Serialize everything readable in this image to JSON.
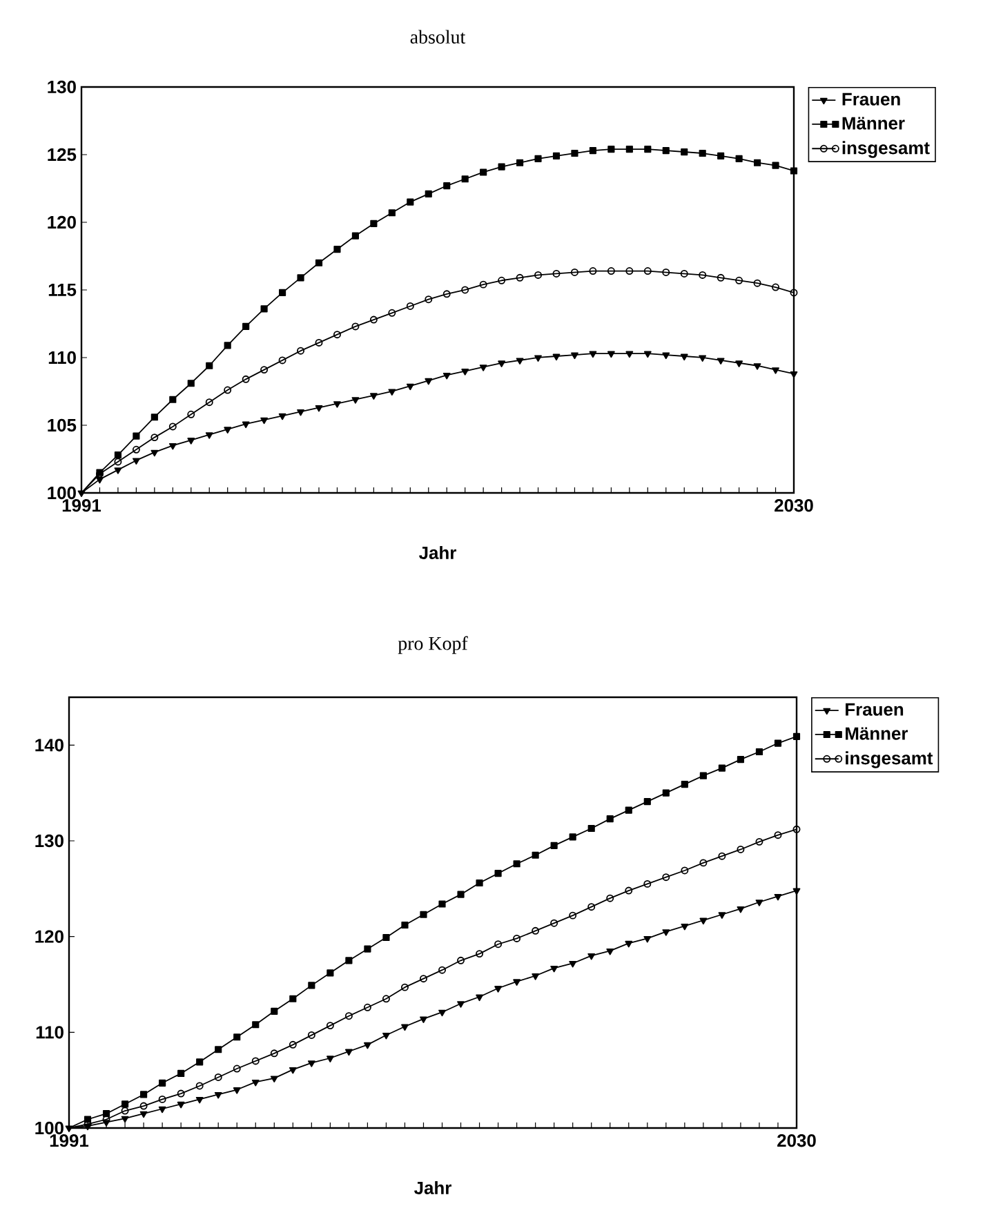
{
  "chart_data": [
    {
      "type": "line",
      "title": "absolut",
      "xlabel": "Jahr",
      "legend": "right",
      "grid": false,
      "line_style": "solid",
      "x": [
        1991,
        1992,
        1993,
        1994,
        1995,
        1996,
        1997,
        1998,
        1999,
        2000,
        2001,
        2002,
        2003,
        2004,
        2005,
        2006,
        2007,
        2008,
        2009,
        2010,
        2011,
        2012,
        2013,
        2014,
        2015,
        2016,
        2017,
        2018,
        2019,
        2020,
        2021,
        2022,
        2023,
        2024,
        2025,
        2026,
        2027,
        2028,
        2029,
        2030
      ],
      "xlim": [
        1991,
        2030
      ],
      "xticks": [
        1991,
        {
          "value": 1992,
          "label": null
        },
        {
          "value": 1993,
          "label": null
        },
        {
          "value": 1994,
          "label": null
        },
        {
          "value": 1995,
          "label": null
        },
        {
          "value": 1996,
          "label": null
        },
        {
          "value": 1997,
          "label": null
        },
        {
          "value": 1998,
          "label": null
        },
        {
          "value": 1999,
          "label": null
        },
        {
          "value": 2000,
          "label": null
        },
        {
          "value": 2001,
          "label": null
        },
        {
          "value": 2002,
          "label": null
        },
        {
          "value": 2003,
          "label": null
        },
        {
          "value": 2004,
          "label": null
        },
        {
          "value": 2005,
          "label": null
        },
        {
          "value": 2006,
          "label": null
        },
        {
          "value": 2007,
          "label": null
        },
        {
          "value": 2008,
          "label": null
        },
        {
          "value": 2009,
          "label": null
        },
        {
          "value": 2010,
          "label": null
        },
        {
          "value": 2011,
          "label": null
        },
        {
          "value": 2012,
          "label": null
        },
        {
          "value": 2013,
          "label": null
        },
        {
          "value": 2014,
          "label": null
        },
        {
          "value": 2015,
          "label": null
        },
        {
          "value": 2016,
          "label": null
        },
        {
          "value": 2017,
          "label": null
        },
        {
          "value": 2018,
          "label": null
        },
        {
          "value": 2019,
          "label": null
        },
        {
          "value": 2020,
          "label": null
        },
        {
          "value": 2021,
          "label": null
        },
        {
          "value": 2022,
          "label": null
        },
        {
          "value": 2023,
          "label": null
        },
        {
          "value": 2024,
          "label": null
        },
        {
          "value": 2025,
          "label": null
        },
        {
          "value": 2026,
          "label": null
        },
        {
          "value": 2027,
          "label": null
        },
        {
          "value": 2028,
          "label": null
        },
        {
          "value": 2029,
          "label": null
        },
        2030
      ],
      "ylim": [
        100,
        130
      ],
      "yticks": [
        100,
        105,
        110,
        115,
        120,
        125,
        130
      ],
      "series": [
        {
          "name": "Frauen",
          "color": "#000000",
          "marker": "triangle",
          "values": [
            100,
            101.0,
            101.7,
            102.4,
            103.0,
            103.5,
            103.9,
            104.3,
            104.7,
            105.1,
            105.4,
            105.7,
            106.0,
            106.3,
            106.6,
            106.9,
            107.2,
            107.5,
            107.9,
            108.3,
            108.7,
            109.0,
            109.3,
            109.6,
            109.8,
            110.0,
            110.1,
            110.2,
            110.3,
            110.3,
            110.3,
            110.3,
            110.2,
            110.1,
            110.0,
            109.8,
            109.6,
            109.4,
            109.1,
            108.8
          ]
        },
        {
          "name": "Männer",
          "color": "#000000",
          "marker": "square",
          "values": [
            100,
            101.5,
            102.8,
            104.2,
            105.6,
            106.9,
            108.1,
            109.4,
            110.9,
            112.3,
            113.6,
            114.8,
            115.9,
            117.0,
            118.0,
            119.0,
            119.9,
            120.7,
            121.5,
            122.1,
            122.7,
            123.2,
            123.7,
            124.1,
            124.4,
            124.7,
            124.9,
            125.1,
            125.3,
            125.4,
            125.4,
            125.4,
            125.3,
            125.2,
            125.1,
            124.9,
            124.7,
            124.4,
            124.2,
            123.8
          ]
        },
        {
          "name": "insgesamt",
          "color": "#000000",
          "marker": "circle",
          "values": [
            100,
            101.4,
            102.3,
            103.2,
            104.1,
            104.9,
            105.8,
            106.7,
            107.6,
            108.4,
            109.1,
            109.8,
            110.5,
            111.1,
            111.7,
            112.3,
            112.8,
            113.3,
            113.8,
            114.3,
            114.7,
            115.0,
            115.4,
            115.7,
            115.9,
            116.1,
            116.2,
            116.3,
            116.4,
            116.4,
            116.4,
            116.4,
            116.3,
            116.2,
            116.1,
            115.9,
            115.7,
            115.5,
            115.2,
            114.8
          ]
        }
      ]
    },
    {
      "type": "line",
      "title": "pro Kopf",
      "xlabel": "Jahr",
      "legend": "right",
      "grid": false,
      "line_style": "solid",
      "x": [
        1991,
        1992,
        1993,
        1994,
        1995,
        1996,
        1997,
        1998,
        1999,
        2000,
        2001,
        2002,
        2003,
        2004,
        2005,
        2006,
        2007,
        2008,
        2009,
        2010,
        2011,
        2012,
        2013,
        2014,
        2015,
        2016,
        2017,
        2018,
        2019,
        2020,
        2021,
        2022,
        2023,
        2024,
        2025,
        2026,
        2027,
        2028,
        2029,
        2030
      ],
      "xlim": [
        1991,
        2030
      ],
      "xticks": [
        1991,
        {
          "value": 1992,
          "label": null
        },
        {
          "value": 1993,
          "label": null
        },
        {
          "value": 1994,
          "label": null
        },
        {
          "value": 1995,
          "label": null
        },
        {
          "value": 1996,
          "label": null
        },
        {
          "value": 1997,
          "label": null
        },
        {
          "value": 1998,
          "label": null
        },
        {
          "value": 1999,
          "label": null
        },
        {
          "value": 2000,
          "label": null
        },
        {
          "value": 2001,
          "label": null
        },
        {
          "value": 2002,
          "label": null
        },
        {
          "value": 2003,
          "label": null
        },
        {
          "value": 2004,
          "label": null
        },
        {
          "value": 2005,
          "label": null
        },
        {
          "value": 2006,
          "label": null
        },
        {
          "value": 2007,
          "label": null
        },
        {
          "value": 2008,
          "label": null
        },
        {
          "value": 2009,
          "label": null
        },
        {
          "value": 2010,
          "label": null
        },
        {
          "value": 2011,
          "label": null
        },
        {
          "value": 2012,
          "label": null
        },
        {
          "value": 2013,
          "label": null
        },
        {
          "value": 2014,
          "label": null
        },
        {
          "value": 2015,
          "label": null
        },
        {
          "value": 2016,
          "label": null
        },
        {
          "value": 2017,
          "label": null
        },
        {
          "value": 2018,
          "label": null
        },
        {
          "value": 2019,
          "label": null
        },
        {
          "value": 2020,
          "label": null
        },
        {
          "value": 2021,
          "label": null
        },
        {
          "value": 2022,
          "label": null
        },
        {
          "value": 2023,
          "label": null
        },
        {
          "value": 2024,
          "label": null
        },
        {
          "value": 2025,
          "label": null
        },
        {
          "value": 2026,
          "label": null
        },
        {
          "value": 2027,
          "label": null
        },
        {
          "value": 2028,
          "label": null
        },
        {
          "value": 2029,
          "label": null
        },
        2030
      ],
      "ylim": [
        100,
        145
      ],
      "yticks": [
        100,
        110,
        120,
        130,
        140
      ],
      "series": [
        {
          "name": "Frauen",
          "color": "#000000",
          "marker": "triangle",
          "values": [
            100,
            100.2,
            100.6,
            101.0,
            101.5,
            102.0,
            102.5,
            103.0,
            103.5,
            104.0,
            104.8,
            105.2,
            106.1,
            106.8,
            107.3,
            108.0,
            108.7,
            109.7,
            110.6,
            111.4,
            112.1,
            113.0,
            113.7,
            114.6,
            115.3,
            115.9,
            116.7,
            117.2,
            118.0,
            118.5,
            119.3,
            119.8,
            120.5,
            121.1,
            121.7,
            122.3,
            122.9,
            123.6,
            124.2,
            124.8
          ]
        },
        {
          "name": "Männer",
          "color": "#000000",
          "marker": "square",
          "values": [
            100,
            100.9,
            101.5,
            102.5,
            103.5,
            104.7,
            105.7,
            106.9,
            108.2,
            109.5,
            110.8,
            112.2,
            113.5,
            114.9,
            116.2,
            117.5,
            118.7,
            119.9,
            121.2,
            122.3,
            123.4,
            124.4,
            125.6,
            126.6,
            127.6,
            128.5,
            129.5,
            130.4,
            131.3,
            132.3,
            133.2,
            134.1,
            135.0,
            135.9,
            136.8,
            137.6,
            138.5,
            139.3,
            140.2,
            140.9
          ]
        },
        {
          "name": "insgesamt",
          "color": "#000000",
          "marker": "circle",
          "values": [
            100,
            100.4,
            100.9,
            101.8,
            102.3,
            103.0,
            103.6,
            104.4,
            105.3,
            106.2,
            107.0,
            107.8,
            108.7,
            109.7,
            110.7,
            111.7,
            112.6,
            113.5,
            114.7,
            115.6,
            116.5,
            117.5,
            118.2,
            119.2,
            119.8,
            120.6,
            121.4,
            122.2,
            123.1,
            124.0,
            124.8,
            125.5,
            126.2,
            126.9,
            127.7,
            128.4,
            129.1,
            129.9,
            130.6,
            131.2
          ]
        }
      ]
    }
  ]
}
